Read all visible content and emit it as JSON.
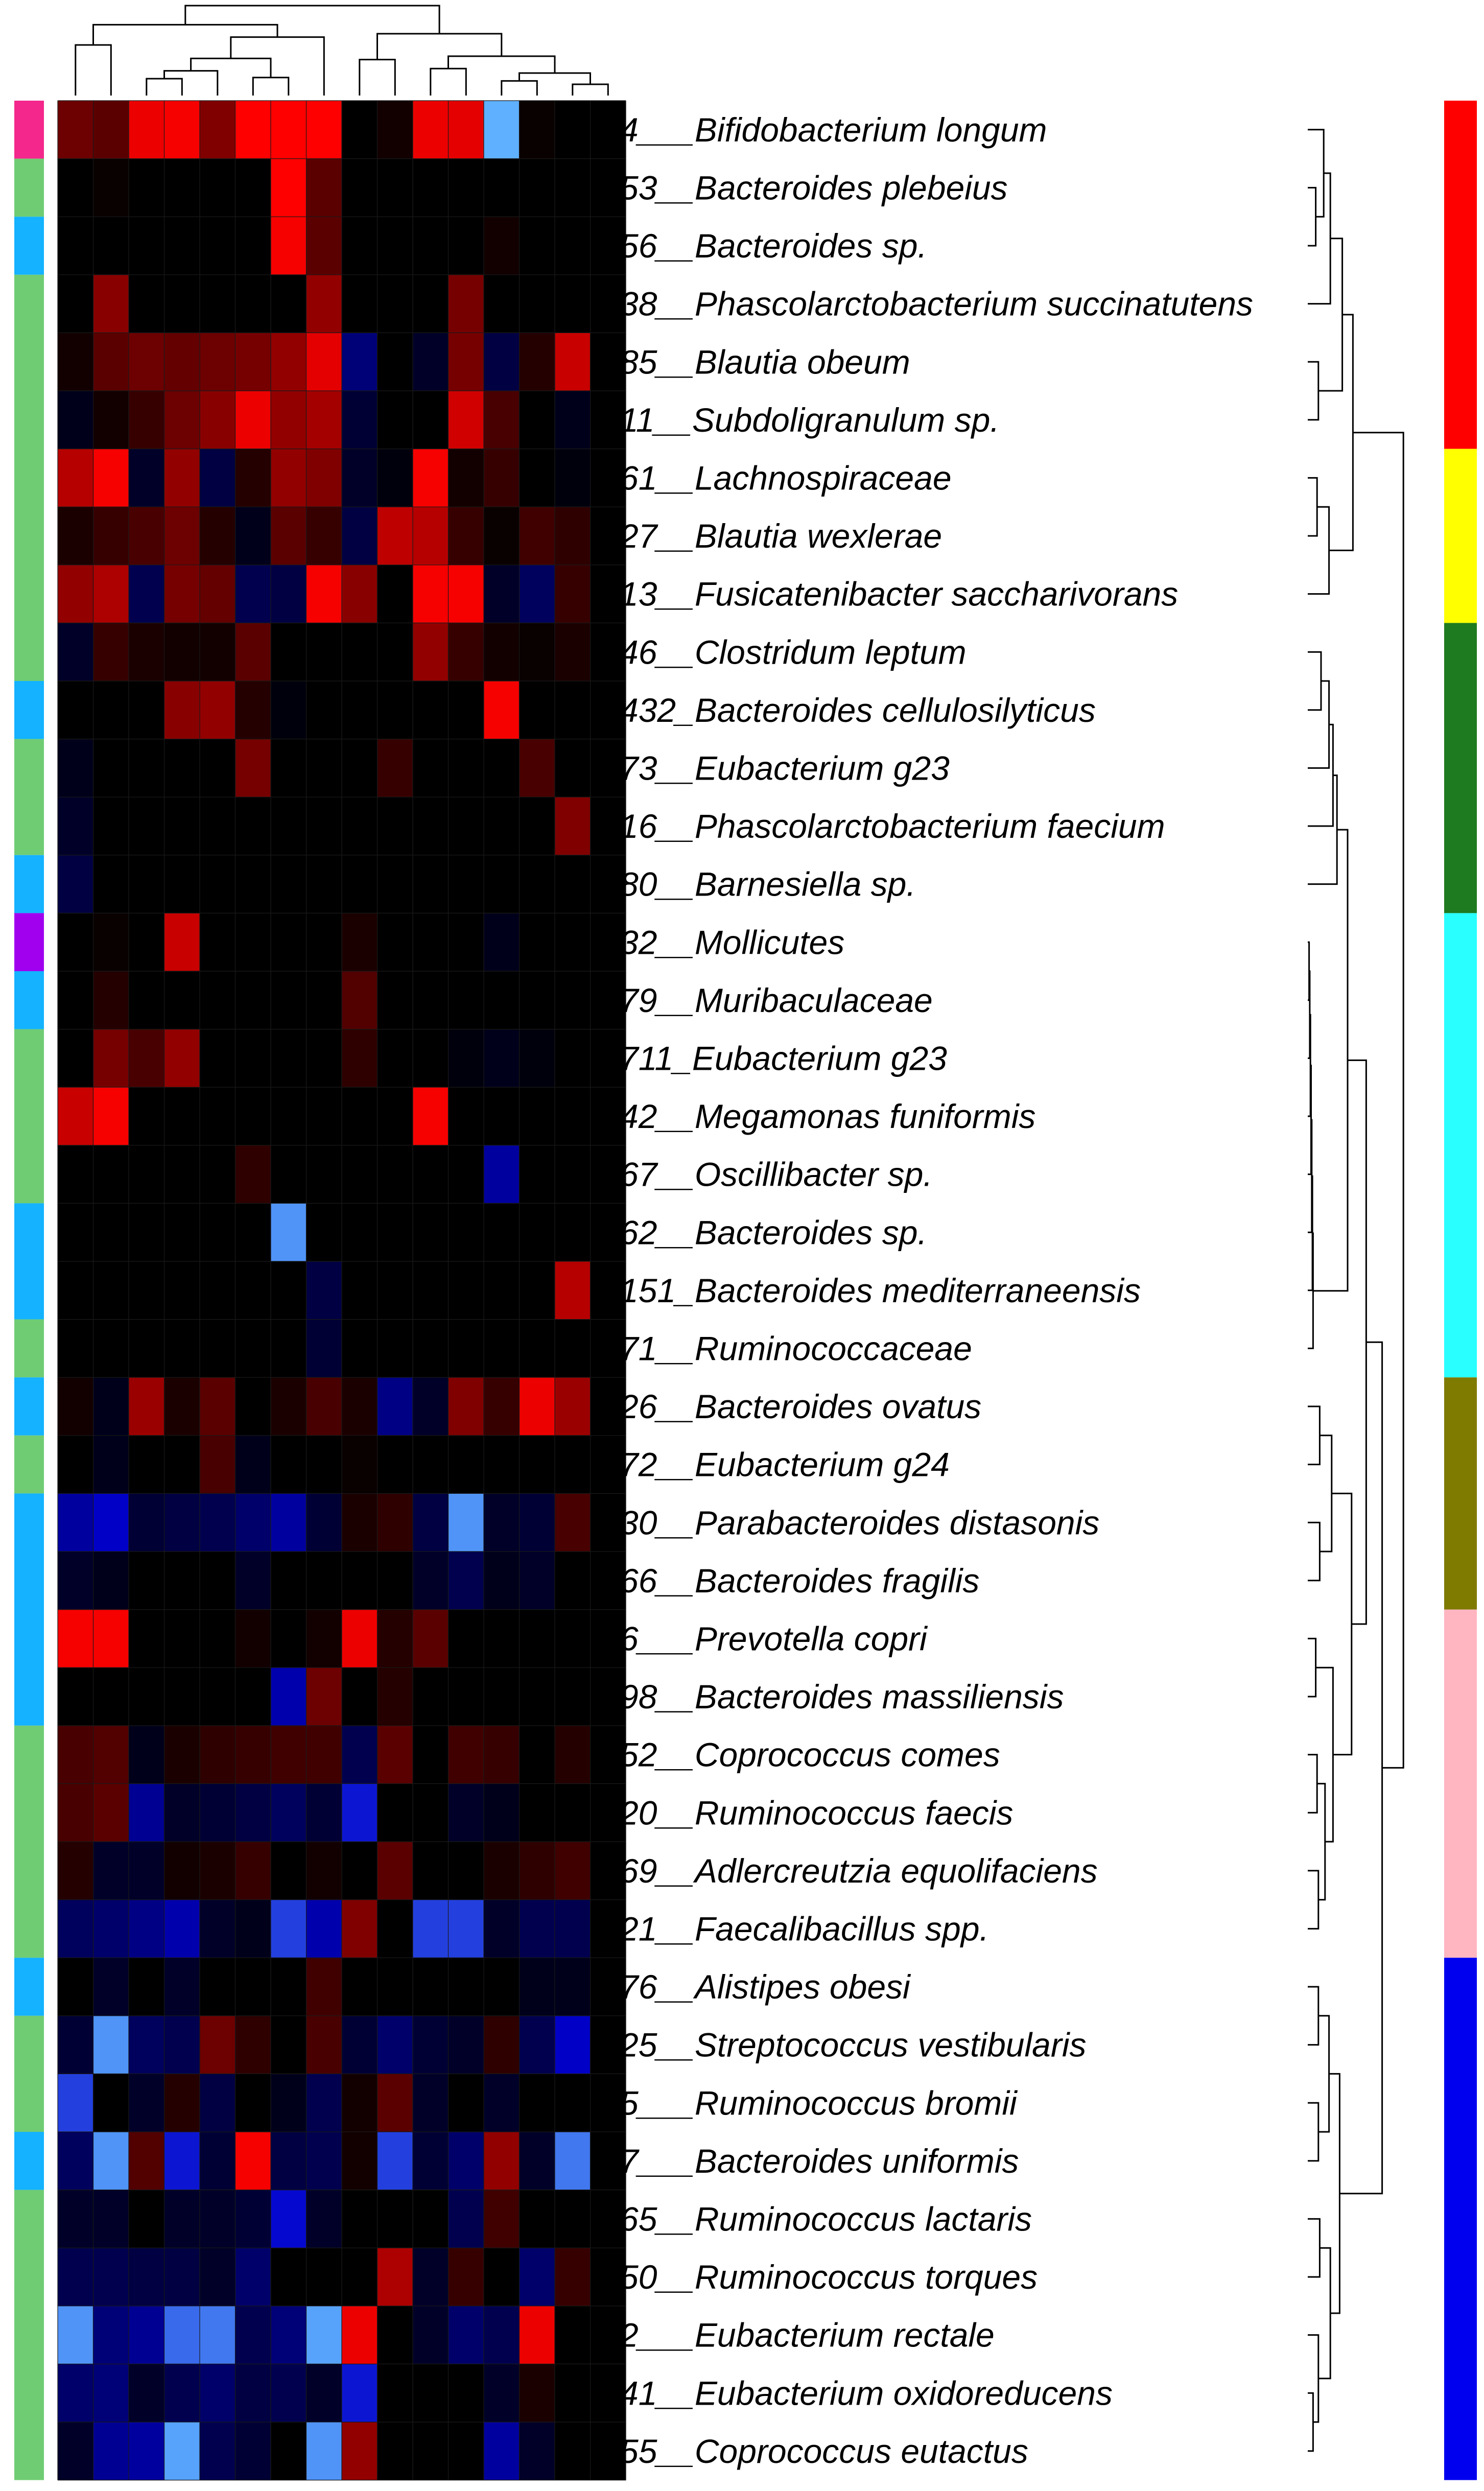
{
  "chart_data": {
    "type": "heatmap",
    "title": "",
    "xlabel": "",
    "ylabel": "",
    "n_columns": 16,
    "legend": "none",
    "color_scale": {
      "high": "#ff0000",
      "mid": "#000000",
      "low": "#0000cc",
      "lowest": "#5fb0ff",
      "note_range": [
        -3,
        3
      ]
    },
    "colors": {
      "phylum": {
        "magenta": "#f3278c",
        "green": "#6fcc73",
        "sky": "#14b2ff",
        "purple": "#a000ee"
      },
      "cluster": {
        "red": "#ff0000",
        "yellow": "#ffff00",
        "green": "#1f7b1f",
        "cyan": "#2affff",
        "olive": "#7f7a00",
        "pink": "#ffb6c1",
        "blue": "#0000ee"
      }
    },
    "rows": [
      {
        "label": "4___Bifidobacterium longum",
        "phylum": "magenta",
        "cluster": "red",
        "values": [
          1.2,
          1.0,
          2.6,
          2.7,
          1.4,
          2.8,
          2.9,
          2.8,
          0.0,
          0.2,
          2.6,
          2.5,
          -2.8,
          0.1,
          0.0,
          0.0
        ]
      },
      {
        "label": "53__Bacteroides plebeius",
        "phylum": "green",
        "cluster": "red",
        "values": [
          0.0,
          0.1,
          0.0,
          0.0,
          0.0,
          0.0,
          2.8,
          1.0,
          0.0,
          0.0,
          0.0,
          0.0,
          0.0,
          0.0,
          0.0,
          0.0
        ]
      },
      {
        "label": "56__Bacteroides sp.",
        "phylum": "sky",
        "cluster": "red",
        "values": [
          0.0,
          0.0,
          0.0,
          0.0,
          0.0,
          0.0,
          2.7,
          1.0,
          0.0,
          0.0,
          0.0,
          0.0,
          0.2,
          0.0,
          0.0,
          0.0
        ]
      },
      {
        "label": "38__Phascolarctobacterium succinatutens",
        "phylum": "green",
        "cluster": "red",
        "values": [
          0.0,
          1.5,
          0.0,
          0.0,
          0.0,
          0.0,
          0.0,
          1.6,
          0.0,
          0.0,
          0.0,
          1.3,
          0.0,
          0.0,
          0.0,
          0.0
        ]
      },
      {
        "label": "85__Blautia obeum",
        "phylum": "green",
        "cluster": "red",
        "values": [
          0.2,
          1.0,
          1.2,
          1.1,
          1.2,
          1.3,
          1.6,
          2.5,
          -0.9,
          0.0,
          -0.3,
          1.3,
          -0.5,
          0.4,
          2.2,
          0.0
        ]
      },
      {
        "label": "11__Subdoligranulum sp.",
        "phylum": "green",
        "cluster": "red",
        "values": [
          -0.2,
          0.2,
          0.6,
          1.2,
          1.5,
          2.6,
          1.6,
          1.8,
          -0.4,
          0.0,
          0.0,
          2.3,
          0.8,
          0.0,
          -0.2,
          0.0
        ]
      },
      {
        "label": "61__Lachnospiraceae",
        "phylum": "green",
        "cluster": "yellow",
        "values": [
          2.0,
          2.7,
          -0.3,
          1.6,
          -0.5,
          0.4,
          1.6,
          1.4,
          -0.3,
          -0.1,
          2.7,
          0.2,
          0.6,
          0.0,
          -0.1,
          0.0
        ]
      },
      {
        "label": "27__Blautia wexlerae",
        "phylum": "green",
        "cluster": "yellow",
        "values": [
          0.3,
          0.6,
          0.8,
          1.2,
          0.4,
          -0.2,
          1.0,
          0.6,
          -0.5,
          2.1,
          2.0,
          0.6,
          0.1,
          0.7,
          0.5,
          0.0
        ]
      },
      {
        "label": "13__Fusicatenibacter saccharivorans",
        "phylum": "green",
        "cluster": "yellow",
        "values": [
          1.6,
          1.9,
          -0.6,
          1.3,
          1.1,
          -0.6,
          -0.5,
          2.7,
          1.5,
          0.0,
          2.7,
          2.7,
          -0.3,
          -0.7,
          0.6,
          0.0
        ]
      },
      {
        "label": "46__Clostridum leptum",
        "phylum": "green",
        "cluster": "green",
        "values": [
          -0.3,
          0.6,
          0.3,
          0.2,
          0.2,
          1.0,
          0.0,
          0.0,
          0.0,
          0.0,
          1.6,
          0.6,
          0.2,
          0.1,
          0.3,
          0.0
        ]
      },
      {
        "label": "432_Bacteroides cellulosilyticus",
        "phylum": "sky",
        "cluster": "green",
        "values": [
          0.0,
          0.0,
          0.0,
          1.5,
          1.6,
          0.4,
          -0.1,
          0.0,
          0.0,
          0.0,
          0.0,
          0.0,
          2.7,
          0.0,
          0.0,
          0.0
        ]
      },
      {
        "label": "73__Eubacterium g23",
        "phylum": "green",
        "cluster": "green",
        "values": [
          -0.2,
          0.0,
          0.0,
          0.0,
          0.0,
          1.3,
          0.0,
          0.0,
          0.0,
          0.6,
          0.0,
          0.0,
          0.0,
          0.8,
          0.0,
          0.0
        ]
      },
      {
        "label": "16__Phascolarctobacterium faecium",
        "phylum": "green",
        "cluster": "green",
        "values": [
          -0.3,
          0.0,
          0.0,
          0.0,
          0.0,
          0.0,
          0.0,
          0.0,
          0.0,
          0.0,
          0.0,
          0.0,
          0.0,
          0.0,
          1.4,
          0.0
        ]
      },
      {
        "label": "80__Barnesiella sp.",
        "phylum": "sky",
        "cluster": "green",
        "values": [
          -0.5,
          0.0,
          0.0,
          0.0,
          0.0,
          0.0,
          0.0,
          0.0,
          0.0,
          0.0,
          0.0,
          0.0,
          0.0,
          0.0,
          0.0,
          0.0
        ]
      },
      {
        "label": "32__Mollicutes",
        "phylum": "purple",
        "cluster": "cyan",
        "values": [
          0.0,
          0.1,
          0.0,
          2.2,
          0.0,
          0.0,
          0.0,
          0.0,
          0.3,
          0.0,
          0.0,
          0.0,
          -0.2,
          0.0,
          0.0,
          0.0
        ]
      },
      {
        "label": "79__Muribaculaceae",
        "phylum": "sky",
        "cluster": "cyan",
        "values": [
          0.0,
          0.4,
          0.0,
          0.0,
          0.0,
          0.0,
          0.0,
          0.0,
          0.9,
          0.0,
          0.0,
          0.0,
          0.0,
          0.0,
          0.0,
          0.0
        ]
      },
      {
        "label": "711_Eubacterium g23",
        "phylum": "green",
        "cluster": "cyan",
        "values": [
          0.0,
          1.3,
          0.8,
          1.6,
          0.0,
          0.0,
          0.0,
          0.0,
          0.5,
          0.0,
          0.0,
          -0.1,
          -0.2,
          -0.1,
          0.0,
          0.0
        ]
      },
      {
        "label": "42__Megamonas funiformis",
        "phylum": "green",
        "cluster": "cyan",
        "values": [
          2.2,
          2.7,
          0.0,
          0.0,
          0.0,
          0.0,
          0.0,
          0.0,
          0.0,
          0.0,
          2.7,
          0.0,
          0.0,
          0.0,
          0.0,
          0.0
        ]
      },
      {
        "label": "67__Oscillibacter sp.",
        "phylum": "green",
        "cluster": "cyan",
        "values": [
          0.0,
          0.0,
          0.0,
          0.0,
          0.0,
          0.5,
          0.0,
          0.0,
          0.0,
          0.0,
          0.0,
          0.0,
          -1.2,
          0.0,
          0.0,
          0.0
        ]
      },
      {
        "label": "62__Bacteroides sp.",
        "phylum": "sky",
        "cluster": "cyan",
        "values": [
          0.0,
          0.0,
          0.0,
          0.0,
          0.0,
          0.0,
          -2.6,
          0.0,
          0.0,
          0.0,
          0.0,
          0.0,
          0.0,
          0.0,
          0.0,
          0.0
        ]
      },
      {
        "label": "151_Bacteroides mediterraneensis",
        "phylum": "sky",
        "cluster": "cyan",
        "values": [
          0.0,
          0.0,
          0.0,
          0.0,
          0.0,
          0.0,
          0.0,
          -0.5,
          0.0,
          0.0,
          0.0,
          0.0,
          0.0,
          0.0,
          2.0,
          0.0
        ]
      },
      {
        "label": "71__Ruminococcaceae",
        "phylum": "green",
        "cluster": "cyan",
        "values": [
          0.0,
          0.0,
          0.0,
          0.0,
          0.0,
          0.0,
          0.0,
          -0.4,
          0.0,
          0.0,
          0.0,
          0.0,
          0.0,
          0.0,
          0.0,
          0.0
        ]
      },
      {
        "label": "26__Bacteroides ovatus",
        "phylum": "sky",
        "cluster": "olive",
        "values": [
          0.2,
          -0.2,
          1.7,
          0.3,
          1.0,
          0.0,
          0.3,
          0.8,
          0.3,
          -1.0,
          -0.3,
          1.4,
          0.6,
          2.6,
          1.7,
          0.0
        ]
      },
      {
        "label": "72__Eubacterium g24",
        "phylum": "green",
        "cluster": "olive",
        "values": [
          0.0,
          -0.2,
          0.0,
          0.0,
          0.8,
          -0.2,
          0.0,
          0.0,
          0.1,
          0.0,
          0.0,
          0.0,
          0.0,
          0.0,
          0.0,
          0.0
        ]
      },
      {
        "label": "30__Parabacteroides distasonis",
        "phylum": "sky",
        "cluster": "olive",
        "values": [
          -1.2,
          -1.5,
          -0.4,
          -0.5,
          -0.6,
          -0.8,
          -1.2,
          -0.4,
          0.3,
          0.5,
          -0.5,
          -2.6,
          -0.3,
          -0.4,
          0.8,
          0.0
        ]
      },
      {
        "label": "66__Bacteroides fragilis",
        "phylum": "sky",
        "cluster": "olive",
        "values": [
          -0.3,
          -0.2,
          0.0,
          0.0,
          0.0,
          -0.3,
          0.0,
          0.0,
          0.0,
          0.0,
          -0.3,
          -0.6,
          -0.2,
          -0.3,
          0.0,
          0.0
        ]
      },
      {
        "label": "6___Prevotella copri",
        "phylum": "sky",
        "cluster": "pink",
        "values": [
          2.7,
          2.7,
          0.0,
          0.0,
          0.0,
          0.2,
          0.0,
          0.2,
          2.6,
          0.4,
          1.0,
          0.0,
          0.0,
          0.0,
          0.0,
          0.0
        ]
      },
      {
        "label": "98__Bacteroides massiliensis",
        "phylum": "sky",
        "cluster": "pink",
        "values": [
          0.0,
          0.0,
          0.0,
          0.0,
          0.0,
          0.0,
          -1.3,
          1.2,
          0.0,
          0.4,
          0.0,
          0.0,
          0.0,
          0.0,
          0.0,
          0.0
        ]
      },
      {
        "label": "52__Coprococcus comes",
        "phylum": "green",
        "cluster": "pink",
        "values": [
          0.8,
          0.9,
          -0.2,
          0.3,
          0.5,
          0.6,
          0.7,
          0.7,
          -0.6,
          1.0,
          0.0,
          0.7,
          0.6,
          0.0,
          0.4,
          0.0
        ]
      },
      {
        "label": "20__Ruminococcus faecis",
        "phylum": "green",
        "cluster": "pink",
        "values": [
          0.8,
          1.0,
          -1.1,
          -0.3,
          -0.4,
          -0.5,
          -0.7,
          -0.4,
          -1.7,
          0.0,
          0.0,
          -0.3,
          -0.2,
          0.0,
          0.0,
          0.0
        ]
      },
      {
        "label": "69__Adlercreutzia equolifaciens",
        "phylum": "green",
        "cluster": "pink",
        "values": [
          0.4,
          -0.3,
          -0.3,
          0.2,
          0.3,
          0.6,
          0.0,
          0.2,
          0.0,
          1.0,
          0.0,
          0.0,
          0.3,
          0.5,
          0.7,
          0.0
        ]
      },
      {
        "label": "21__Faecalibacillus spp.",
        "phylum": "green",
        "cluster": "pink",
        "values": [
          -0.7,
          -0.8,
          -1.0,
          -1.3,
          -0.3,
          -0.2,
          -2.0,
          -1.3,
          1.4,
          0.0,
          -2.0,
          -2.0,
          -0.3,
          -0.6,
          -0.6,
          0.0
        ]
      },
      {
        "label": "76__Alistipes obesi",
        "phylum": "sky",
        "cluster": "blue",
        "values": [
          0.0,
          -0.3,
          0.0,
          -0.3,
          0.0,
          0.0,
          0.0,
          0.7,
          0.0,
          0.0,
          0.0,
          0.0,
          0.0,
          -0.2,
          -0.2,
          0.0
        ]
      },
      {
        "label": "25__Streptococcus vestibularis",
        "phylum": "green",
        "cluster": "blue",
        "values": [
          -0.4,
          -2.6,
          -0.7,
          -0.6,
          1.2,
          0.5,
          0.0,
          0.8,
          -0.4,
          -0.8,
          -0.4,
          -0.3,
          0.5,
          -0.6,
          -1.5,
          0.0
        ]
      },
      {
        "label": "5___Ruminococcus bromii",
        "phylum": "green",
        "cluster": "blue",
        "values": [
          -2.0,
          0.0,
          -0.3,
          0.4,
          -0.5,
          0.0,
          -0.2,
          -0.6,
          0.2,
          1.0,
          -0.3,
          0.0,
          -0.3,
          0.0,
          0.0,
          0.0
        ]
      },
      {
        "label": "7___Bacteroides uniformis",
        "phylum": "sky",
        "cluster": "blue",
        "values": [
          -0.7,
          -2.6,
          0.9,
          -1.7,
          -0.4,
          2.7,
          -0.5,
          -0.6,
          0.2,
          -2.0,
          -0.4,
          -0.8,
          1.6,
          -0.3,
          -2.4,
          0.0
        ]
      },
      {
        "label": "65__Ruminococcus lactaris",
        "phylum": "green",
        "cluster": "blue",
        "values": [
          -0.3,
          -0.3,
          0.0,
          -0.3,
          -0.3,
          -0.4,
          -1.6,
          -0.3,
          0.0,
          0.0,
          0.0,
          -0.6,
          0.7,
          0.0,
          0.0,
          0.0
        ]
      },
      {
        "label": "50__Ruminococcus torques",
        "phylum": "green",
        "cluster": "blue",
        "values": [
          -0.6,
          -0.6,
          -0.5,
          -0.5,
          -0.3,
          -0.8,
          0.0,
          0.0,
          0.0,
          1.9,
          -0.3,
          0.6,
          0.0,
          -0.8,
          0.6,
          0.0
        ]
      },
      {
        "label": "2___Eubacterium rectale",
        "phylum": "green",
        "cluster": "blue",
        "values": [
          -2.6,
          -0.9,
          -1.1,
          -2.3,
          -2.4,
          -0.6,
          -0.9,
          -2.7,
          2.6,
          0.0,
          -0.3,
          -0.8,
          -0.6,
          2.6,
          0.0,
          0.0
        ]
      },
      {
        "label": "41__Eubacterium oxidoreducens",
        "phylum": "green",
        "cluster": "blue",
        "values": [
          -0.8,
          -0.9,
          -0.3,
          -0.6,
          -0.8,
          -0.5,
          -0.6,
          -0.3,
          -1.7,
          0.0,
          0.0,
          0.0,
          -0.3,
          0.3,
          0.0,
          0.0
        ]
      },
      {
        "label": "55__Coprococcus eutactus",
        "phylum": "green",
        "cluster": "blue",
        "values": [
          -0.3,
          -1.1,
          -1.2,
          -2.7,
          -0.6,
          -0.4,
          0.0,
          -2.6,
          1.6,
          0.0,
          0.0,
          0.0,
          -1.2,
          -0.3,
          0.0,
          0.0
        ]
      }
    ]
  }
}
